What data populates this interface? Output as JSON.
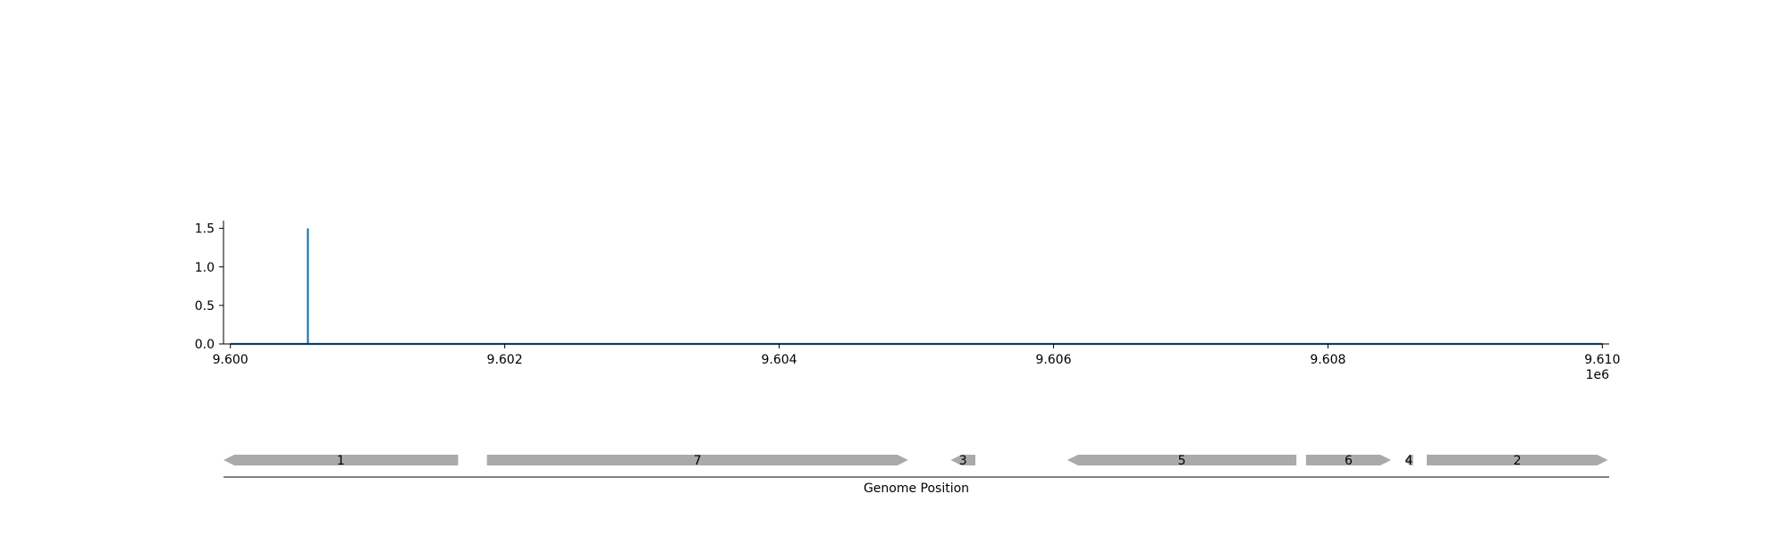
{
  "chart_data": [
    {
      "type": "line",
      "title": "",
      "xlabel": "",
      "ylabel": "",
      "x_offset_label": "1e6",
      "xlim": [
        9.59995,
        9.61005
      ],
      "ylim": [
        0,
        1.6
      ],
      "xticks": [
        "9.600",
        "9.602",
        "9.604",
        "9.606",
        "9.608",
        "9.610"
      ],
      "xtick_values": [
        9.6,
        9.602,
        9.604,
        9.606,
        9.608,
        9.61
      ],
      "yticks": [
        "0.0",
        "0.5",
        "1.0",
        "1.5"
      ],
      "ytick_values": [
        0.0,
        0.5,
        1.0,
        1.5
      ],
      "series": [
        {
          "color": "#1f77b4",
          "x": [
            9.6,
            9.600565,
            9.600565,
            9.600565,
            9.61
          ],
          "y": [
            0,
            0,
            1.5,
            0,
            0
          ]
        }
      ],
      "grid": false
    },
    {
      "type": "gene-map",
      "xlabel": "Genome Position",
      "genes": [
        {
          "label": "1",
          "start": 9.59995,
          "end": 9.60166,
          "strand": "-",
          "color": "#aaaaaa"
        },
        {
          "label": "7",
          "start": 9.60187,
          "end": 9.60494,
          "strand": "+",
          "color": "#aaaaaa"
        },
        {
          "label": "3",
          "start": 9.60525,
          "end": 9.60543,
          "strand": "-",
          "color": "#aaaaaa"
        },
        {
          "label": "5",
          "start": 9.6061,
          "end": 9.60777,
          "strand": "-",
          "color": "#aaaaaa"
        },
        {
          "label": "6",
          "start": 9.60784,
          "end": 9.60846,
          "strand": "+",
          "color": "#aaaaaa"
        },
        {
          "label": "4",
          "start": 9.60856,
          "end": 9.60862,
          "strand": "-",
          "color": "#aaaaaa"
        },
        {
          "label": "2",
          "start": 9.60872,
          "end": 9.61004,
          "strand": "+",
          "color": "#aaaaaa"
        }
      ]
    }
  ]
}
